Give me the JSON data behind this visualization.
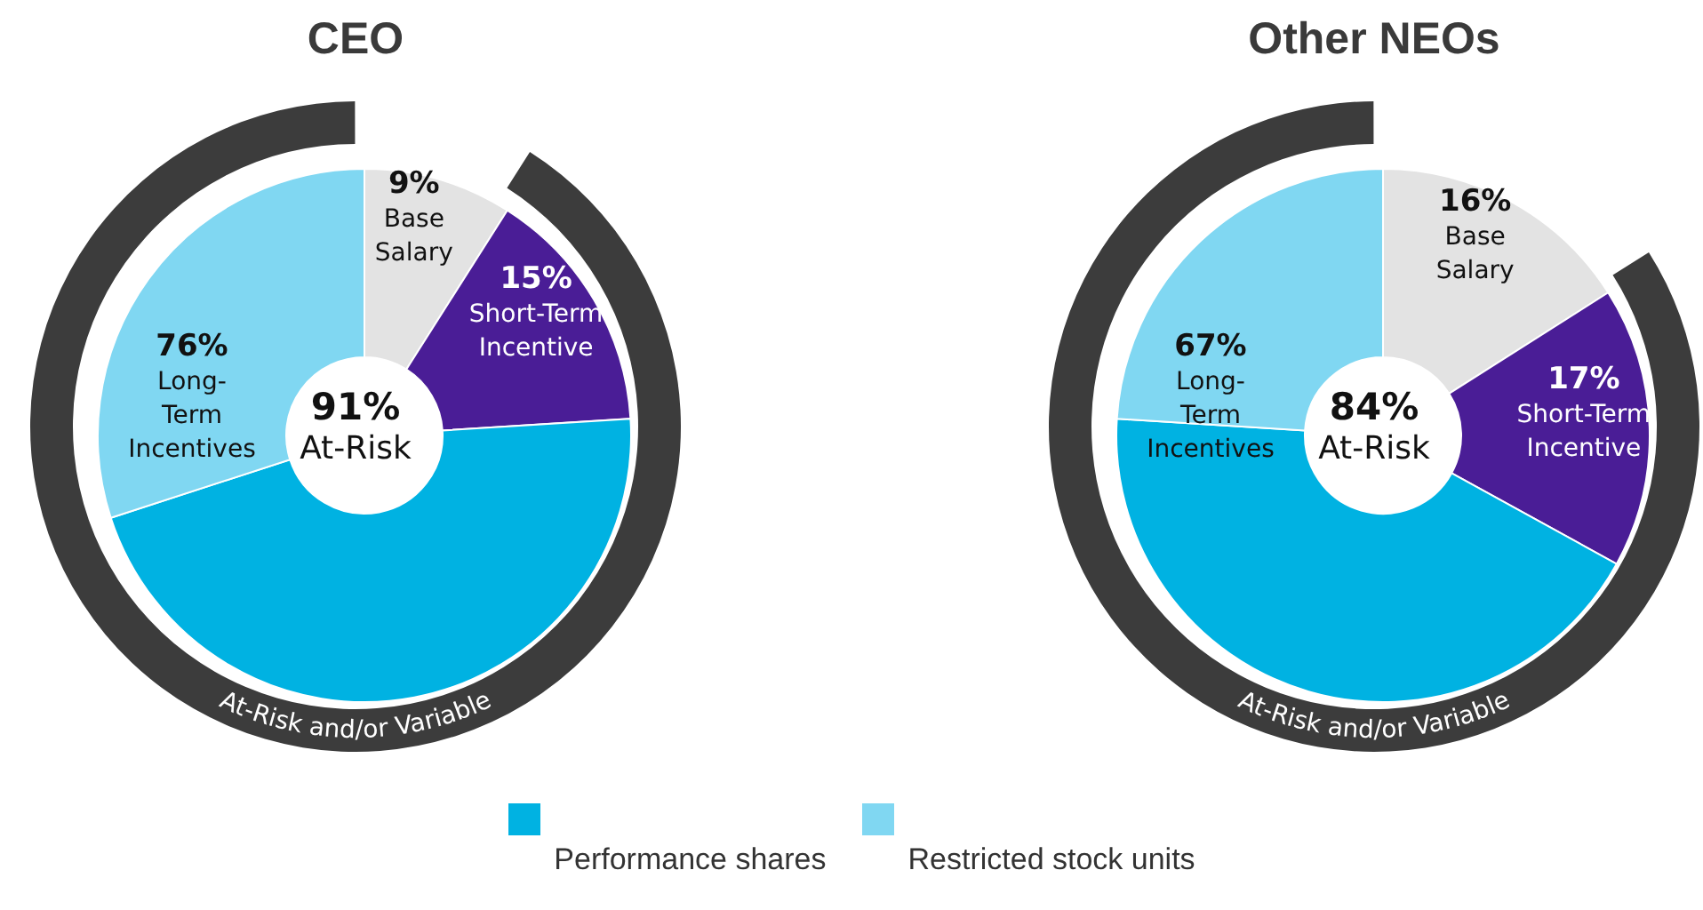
{
  "chart_data": [
    {
      "type": "donut",
      "title": "CEO",
      "categories": [
        "Base Salary",
        "Short-Term Incentive",
        "Performance shares",
        "Restricted stock units"
      ],
      "values": [
        9,
        15,
        46,
        30
      ],
      "colors": [
        "#e3e3e3",
        "#4a1d96",
        "#00b2e2",
        "#80d7f2"
      ],
      "value_labels": [
        "9%",
        "15%",
        null,
        null
      ],
      "legend": "bottom",
      "annotations": [
        "76% Long-Term Incentives",
        "91% At-Risk",
        "At-Risk and/or Variable"
      ]
    },
    {
      "type": "donut",
      "title": "Other NEOs",
      "categories": [
        "Base Salary",
        "Short-Term Incentive",
        null,
        null
      ],
      "values": [
        16,
        17,
        43,
        24
      ],
      "colors": [
        "#e3e3e3",
        "#4a1d96",
        "#00b2e2",
        "#80d7f2"
      ],
      "value_labels": [
        "16%",
        "17%",
        null,
        null
      ],
      "annotations": [
        "67% Long-Term Incentives",
        "84% At-Risk",
        "At-Risk and/or Variable"
      ]
    }
  ]
}
